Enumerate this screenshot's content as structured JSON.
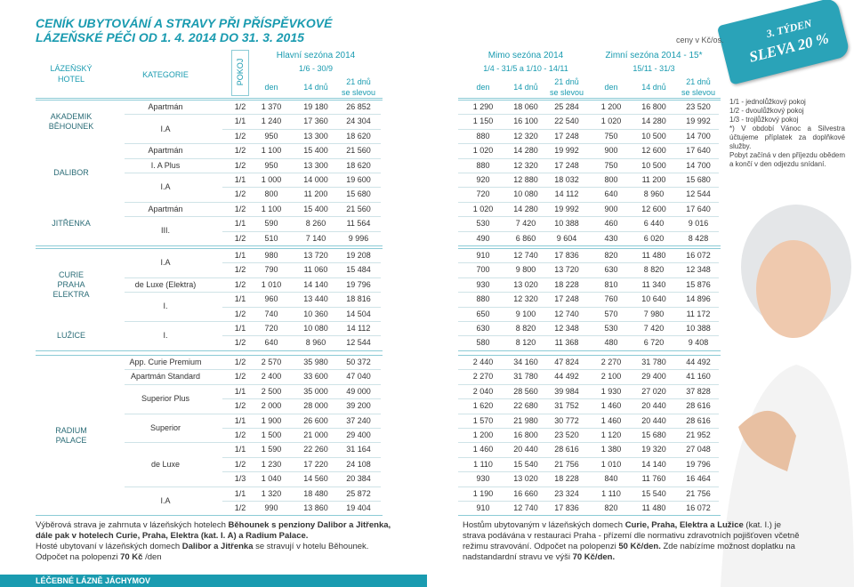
{
  "title": [
    "CENÍK UBYTOVÁNÍ A STRAVY PŘI PŘÍSPĚVKOVÉ",
    "LÁZEŇSKÉ PÉČI OD 1. 4. 2014 DO 31. 3. 2015"
  ],
  "currency_note": "ceny v Kč/os.",
  "badge": [
    "3. TÝDEN",
    "SLEVA 20 %"
  ],
  "header": {
    "hotel": [
      "LÁZEŇSKÝ",
      "HOTEL"
    ],
    "category": "KATEGORIE",
    "room": "POKOJ",
    "seasons": [
      {
        "name": "Hlavní sezóna 2014",
        "dates": "1/6 - 30/9",
        "columns": [
          "den",
          "14 dnů",
          "21 dnů",
          "se slevou"
        ]
      },
      {
        "name": "Mimo sezóna 2014",
        "dates": "1/4 - 31/5 a 1/10 - 14/11",
        "columns": [
          "den",
          "14 dnů",
          "21 dnů",
          "se slevou"
        ]
      },
      {
        "name": "Zimní sezóna 2014 - 15*",
        "dates": "15/11 - 31/3",
        "columns": [
          "den",
          "14 dnů",
          "21 dnů",
          "se slevou"
        ]
      }
    ]
  },
  "groups": [
    {
      "hotels": [
        {
          "name": [
            "AKADEMIK",
            "BĚHOUNEK"
          ],
          "categories": [
            {
              "name": "Apartmán",
              "rooms": [
                {
                  "room": "1/2",
                  "prices": [
                    "1 370",
                    "19 180",
                    "26 852",
                    "1 290",
                    "18 060",
                    "25 284",
                    "1 200",
                    "16 800",
                    "23 520"
                  ]
                }
              ]
            },
            {
              "name": "I.A",
              "rooms": [
                {
                  "room": "1/1",
                  "prices": [
                    "1 240",
                    "17 360",
                    "24 304",
                    "1 150",
                    "16 100",
                    "22 540",
                    "1 020",
                    "14 280",
                    "19 992"
                  ]
                },
                {
                  "room": "1/2",
                  "prices": [
                    "950",
                    "13 300",
                    "18 620",
                    "880",
                    "12 320",
                    "17 248",
                    "750",
                    "10 500",
                    "14 700"
                  ]
                }
              ]
            }
          ]
        },
        {
          "name": [
            "DALIBOR"
          ],
          "categories": [
            {
              "name": "Apartmán",
              "rooms": [
                {
                  "room": "1/2",
                  "prices": [
                    "1 100",
                    "15 400",
                    "21 560",
                    "1 020",
                    "14 280",
                    "19 992",
                    "900",
                    "12 600",
                    "17 640"
                  ]
                }
              ]
            },
            {
              "name": "I. A Plus",
              "rooms": [
                {
                  "room": "1/2",
                  "prices": [
                    "950",
                    "13 300",
                    "18 620",
                    "880",
                    "12 320",
                    "17 248",
                    "750",
                    "10 500",
                    "14 700"
                  ]
                }
              ]
            },
            {
              "name": "I.A",
              "rooms": [
                {
                  "room": "1/1",
                  "prices": [
                    "1 000",
                    "14 000",
                    "19 600",
                    "920",
                    "12 880",
                    "18 032",
                    "800",
                    "11 200",
                    "15 680"
                  ]
                },
                {
                  "room": "1/2",
                  "prices": [
                    "800",
                    "11 200",
                    "15 680",
                    "720",
                    "10 080",
                    "14 112",
                    "640",
                    "8 960",
                    "12 544"
                  ]
                }
              ]
            }
          ]
        },
        {
          "name": [
            "JITŘENKA"
          ],
          "categories": [
            {
              "name": "Apartmán",
              "rooms": [
                {
                  "room": "1/2",
                  "prices": [
                    "1 100",
                    "15 400",
                    "21 560",
                    "1 020",
                    "14 280",
                    "19 992",
                    "900",
                    "12 600",
                    "17 640"
                  ]
                }
              ]
            },
            {
              "name": "III.",
              "rooms": [
                {
                  "room": "1/1",
                  "prices": [
                    "590",
                    "8 260",
                    "11 564",
                    "530",
                    "7 420",
                    "10 388",
                    "460",
                    "6 440",
                    "9 016"
                  ]
                },
                {
                  "room": "1/2",
                  "prices": [
                    "510",
                    "7 140",
                    "9 996",
                    "490",
                    "6 860",
                    "9 604",
                    "430",
                    "6 020",
                    "8 428"
                  ]
                }
              ]
            }
          ]
        }
      ]
    },
    {
      "hotels": [
        {
          "name": [
            "CURIE",
            "PRAHA",
            "ELEKTRA"
          ],
          "categories": [
            {
              "name": "I.A",
              "rooms": [
                {
                  "room": "1/1",
                  "prices": [
                    "980",
                    "13 720",
                    "19 208",
                    "910",
                    "12 740",
                    "17 836",
                    "820",
                    "11 480",
                    "16 072"
                  ]
                },
                {
                  "room": "1/2",
                  "prices": [
                    "790",
                    "11 060",
                    "15 484",
                    "700",
                    "9 800",
                    "13 720",
                    "630",
                    "8 820",
                    "12 348"
                  ]
                }
              ]
            },
            {
              "name": "de Luxe (Elektra)",
              "rooms": [
                {
                  "room": "1/2",
                  "prices": [
                    "1 010",
                    "14 140",
                    "19 796",
                    "930",
                    "13 020",
                    "18 228",
                    "810",
                    "11 340",
                    "15 876"
                  ]
                }
              ]
            },
            {
              "name": "I.",
              "rooms": [
                {
                  "room": "1/1",
                  "prices": [
                    "960",
                    "13 440",
                    "18 816",
                    "880",
                    "12 320",
                    "17 248",
                    "760",
                    "10 640",
                    "14 896"
                  ]
                },
                {
                  "room": "1/2",
                  "prices": [
                    "740",
                    "10 360",
                    "14 504",
                    "650",
                    "9 100",
                    "12 740",
                    "570",
                    "7 980",
                    "11 172"
                  ]
                }
              ]
            }
          ]
        },
        {
          "name": [
            "LUŽICE"
          ],
          "categories": [
            {
              "name": "I.",
              "rooms": [
                {
                  "room": "1/1",
                  "prices": [
                    "720",
                    "10 080",
                    "14 112",
                    "630",
                    "8 820",
                    "12 348",
                    "530",
                    "7 420",
                    "10 388"
                  ]
                },
                {
                  "room": "1/2",
                  "prices": [
                    "640",
                    "8 960",
                    "12 544",
                    "580",
                    "8 120",
                    "11 368",
                    "480",
                    "6 720",
                    "9 408"
                  ]
                }
              ]
            }
          ]
        }
      ]
    },
    {
      "hotels": [
        {
          "name": [
            "RADIUM",
            "PALACE"
          ],
          "categories": [
            {
              "name": "App. Curie Premium",
              "rooms": [
                {
                  "room": "1/2",
                  "prices": [
                    "2 570",
                    "35 980",
                    "50 372",
                    "2 440",
                    "34 160",
                    "47 824",
                    "2 270",
                    "31 780",
                    "44 492"
                  ]
                }
              ]
            },
            {
              "name": "Apartmán Standard",
              "rooms": [
                {
                  "room": "1/2",
                  "prices": [
                    "2 400",
                    "33 600",
                    "47 040",
                    "2 270",
                    "31 780",
                    "44 492",
                    "2 100",
                    "29 400",
                    "41 160"
                  ]
                }
              ]
            },
            {
              "name": "Superior Plus",
              "rooms": [
                {
                  "room": "1/1",
                  "prices": [
                    "2 500",
                    "35 000",
                    "49 000",
                    "2 040",
                    "28 560",
                    "39 984",
                    "1 930",
                    "27 020",
                    "37 828"
                  ]
                },
                {
                  "room": "1/2",
                  "prices": [
                    "2 000",
                    "28 000",
                    "39 200",
                    "1 620",
                    "22 680",
                    "31 752",
                    "1 460",
                    "20 440",
                    "28 616"
                  ]
                }
              ]
            },
            {
              "name": "Superior",
              "rooms": [
                {
                  "room": "1/1",
                  "prices": [
                    "1 900",
                    "26 600",
                    "37 240",
                    "1 570",
                    "21 980",
                    "30 772",
                    "1 460",
                    "20 440",
                    "28 616"
                  ]
                },
                {
                  "room": "1/2",
                  "prices": [
                    "1 500",
                    "21 000",
                    "29 400",
                    "1 200",
                    "16 800",
                    "23 520",
                    "1 120",
                    "15 680",
                    "21 952"
                  ]
                }
              ]
            },
            {
              "name": "de Luxe",
              "rooms": [
                {
                  "room": "1/1",
                  "prices": [
                    "1 590",
                    "22 260",
                    "31 164",
                    "1 460",
                    "20 440",
                    "28 616",
                    "1 380",
                    "19 320",
                    "27 048"
                  ]
                },
                {
                  "room": "1/2",
                  "prices": [
                    "1 230",
                    "17 220",
                    "24 108",
                    "1 110",
                    "15 540",
                    "21 756",
                    "1 010",
                    "14 140",
                    "19 796"
                  ]
                },
                {
                  "room": "1/3",
                  "prices": [
                    "1 040",
                    "14 560",
                    "20 384",
                    "930",
                    "13 020",
                    "18 228",
                    "840",
                    "11 760",
                    "16 464"
                  ]
                }
              ]
            },
            {
              "name": "I.A",
              "rooms": [
                {
                  "room": "1/1",
                  "prices": [
                    "1 320",
                    "18 480",
                    "25 872",
                    "1 190",
                    "16 660",
                    "23 324",
                    "1 110",
                    "15 540",
                    "21 756"
                  ]
                },
                {
                  "room": "1/2",
                  "prices": [
                    "990",
                    "13 860",
                    "19 404",
                    "910",
                    "12 740",
                    "17 836",
                    "820",
                    "11 480",
                    "16 072"
                  ]
                }
              ]
            }
          ]
        }
      ]
    }
  ],
  "notes": [
    "1/1 - jednolůžkový pokoj",
    "1/2 - dvoulůžkový pokoj",
    "1/3 - trojlůžkový pokoj",
    "*) V období Vánoc a Silvestra účtujeme příplatek za doplňkové služby.",
    "Pobyt začíná v den příjezdu obědem a končí v den odjezdu snídaní."
  ],
  "text_left": [
    [
      {
        "text": "Výběrová strava je zahrnuta v lázeňských hotelech "
      },
      {
        "text": "Běhounek s penziony Dalibor a Jitřenka, dále pak v hotelech Curie, Praha, Elektra (kat. I. A) a Radium Palace.",
        "bold": true
      }
    ],
    [
      {
        "text": "Hosté ubytovaní v lázeňských domech "
      },
      {
        "text": "Dalibor a Jitřenka",
        "bold": true
      },
      {
        "text": " se stravují v hotelu Běhounek."
      }
    ],
    [
      {
        "text": "Odpočet na polopenzi "
      },
      {
        "text": "70 Kč",
        "bold": true
      },
      {
        "text": " /den"
      }
    ]
  ],
  "text_right": [
    [
      {
        "text": "Hostům ubytovaným v lázeňských domech "
      },
      {
        "text": "Curie, Praha, Elektra a Lužice",
        "bold": true
      },
      {
        "text": " (kat. I.) je strava podávána v restauraci Praha - přízemí dle normativu zdravotních pojišťoven včetně režimu stravování. Odpočet na polopenzi "
      },
      {
        "text": "50 Kč/den.",
        "bold": true
      },
      {
        "text": " Zde nabízíme možnost doplatku na nadstandardní stravu ve výši "
      },
      {
        "text": "70 Kč/den.",
        "bold": true
      }
    ]
  ],
  "footer": "LÉČEBNÉ LÁZNĚ JÁCHYMOV"
}
